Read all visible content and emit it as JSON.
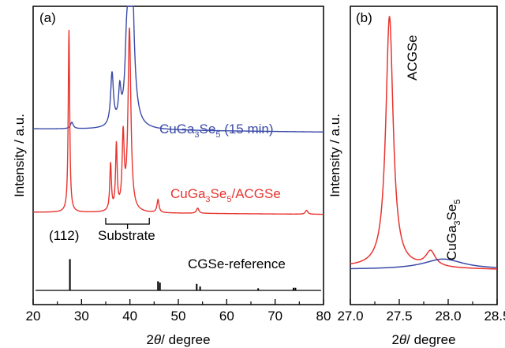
{
  "colors": {
    "red": "#e8342f",
    "blue": "#3a4aa8",
    "black": "#000000"
  },
  "chart_data": [
    {
      "type": "line",
      "panel_label": "(a)",
      "xlabel_pre": "2",
      "xlabel_theta": "θ",
      "xlabel_post": "/ degree",
      "ylabel": "Intensity / a.u.",
      "xlim": [
        20,
        80
      ],
      "xticks": [
        "20",
        "30",
        "40",
        "50",
        "60",
        "70",
        "80"
      ],
      "grid": false,
      "series": [
        {
          "name": "CuGa3Se5 (15 min)",
          "label_parts": [
            "CuGa",
            "3",
            "Se",
            "5",
            " (15 min)"
          ],
          "color": "#3a4aa8",
          "baseline": 0.62,
          "peaks": [
            [
              28.0,
              0.025,
              0.35
            ],
            [
              36.3,
              0.2,
              0.35
            ],
            [
              37.9,
              0.12,
              0.3
            ],
            [
              39.3,
              0.18,
              0.35
            ],
            [
              40.2,
              0.9,
              0.55
            ]
          ]
        },
        {
          "name": "CuGa3Se5/ACGSe",
          "label_parts": [
            "CuGa",
            "3",
            "Se",
            "5",
            "/ACGSe"
          ],
          "color": "#e8342f",
          "baseline": 0.3,
          "peaks": [
            [
              27.4,
              0.7,
              0.18
            ],
            [
              36.0,
              0.18,
              0.2
            ],
            [
              37.2,
              0.25,
              0.2
            ],
            [
              38.6,
              0.28,
              0.25
            ],
            [
              39.9,
              0.7,
              0.35
            ],
            [
              45.8,
              0.05,
              0.25
            ],
            [
              54.0,
              0.02,
              0.3
            ],
            [
              76.5,
              0.015,
              0.3
            ]
          ]
        },
        {
          "name": "CGSe-reference",
          "label_parts": [
            "CGSe-reference"
          ],
          "color": "#000000",
          "baseline": 0.0,
          "sticks": [
            [
              27.6,
              0.12
            ],
            [
              45.8,
              0.035
            ],
            [
              46.2,
              0.03
            ],
            [
              53.8,
              0.025
            ],
            [
              54.5,
              0.015
            ],
            [
              66.5,
              0.008
            ],
            [
              73.8,
              0.01
            ],
            [
              74.2,
              0.01
            ]
          ]
        }
      ],
      "annotations": {
        "hkl": "(112)",
        "substrate": "Substrate",
        "substrate_range": [
          35,
          44
        ]
      }
    },
    {
      "type": "line",
      "panel_label": "(b)",
      "xlabel_pre": "2",
      "xlabel_theta": "θ",
      "xlabel_post": "/ degree",
      "xlim": [
        27.0,
        28.5
      ],
      "xticks": [
        "27.0",
        "27.5",
        "28.0",
        "28.5"
      ],
      "grid": false,
      "peak_labels": [
        {
          "text_parts": [
            "ACGSe"
          ],
          "x": 27.4
        },
        {
          "text_parts": [
            "CuGa",
            "3",
            "Se",
            "5"
          ],
          "x": 27.85
        }
      ],
      "series": [
        {
          "name": "ACGSe",
          "color": "#e8342f",
          "peak_x": 27.4,
          "peak_h": 1.0,
          "width": 0.045,
          "second_x": 27.82,
          "second_h": 0.06,
          "second_w": 0.06
        },
        {
          "name": "CuGa3Se5",
          "color": "#3a4aa8",
          "peak_x": 27.95,
          "peak_h": 0.04,
          "width": 0.25
        }
      ]
    }
  ]
}
